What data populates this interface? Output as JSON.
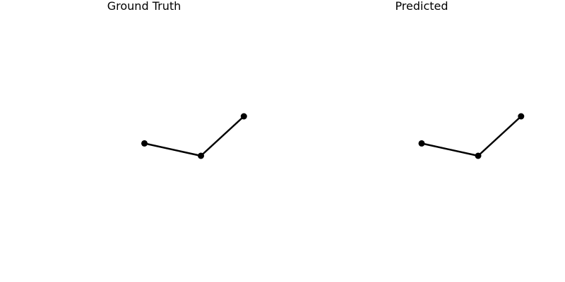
{
  "chart_data": [
    {
      "type": "line",
      "title": "Ground Truth",
      "xlabel": "",
      "ylabel": "",
      "axes_visible": false,
      "grid": false,
      "line_color": "#000000",
      "marker": "circle",
      "x": [
        -0.5,
        0.0,
        0.38
      ],
      "y": [
        0.11,
        0.0,
        0.35
      ]
    },
    {
      "type": "line",
      "title": "Predicted",
      "xlabel": "",
      "ylabel": "",
      "axes_visible": false,
      "grid": false,
      "line_color": "#000000",
      "marker": "circle",
      "x": [
        -0.5,
        0.0,
        0.38
      ],
      "y": [
        0.11,
        0.0,
        0.35
      ]
    }
  ]
}
